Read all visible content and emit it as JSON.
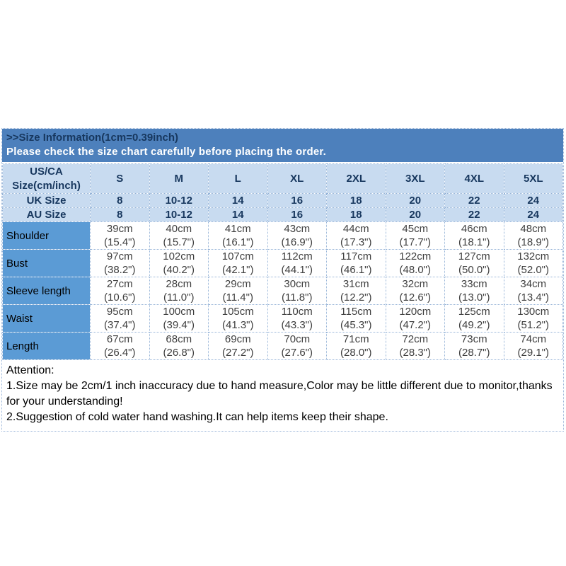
{
  "colors": {
    "band_bg": "#4D80BC",
    "band_title_text": "#17375E",
    "band_subtitle_text": "#FFFFFF",
    "header_row_bg": "#C8DBF0",
    "header_text": "#17375E",
    "label_column_bg": "#5B9BD5",
    "cell_border": "#95B3D7",
    "body_text": "#3F3F3F"
  },
  "header": {
    "title": ">>Size Information(1cm=0.39inch)",
    "subtitle": "Please check the size chart carefully before placing the order."
  },
  "size_table": {
    "corner_label_line1": "US/CA",
    "corner_label_line2": "Size(cm/inch)",
    "size_columns": [
      "S",
      "M",
      "L",
      "XL",
      "2XL",
      "3XL",
      "4XL",
      "5XL"
    ],
    "conversion_rows": [
      {
        "label": "UK Size",
        "values": [
          "8",
          "10-12",
          "14",
          "16",
          "18",
          "20",
          "22",
          "24"
        ]
      },
      {
        "label": "AU Size",
        "values": [
          "8",
          "10-12",
          "14",
          "16",
          "18",
          "20",
          "22",
          "24"
        ]
      }
    ],
    "measurement_rows": [
      {
        "label": "Shoulder",
        "cm": [
          "39cm",
          "40cm",
          "41cm",
          "43cm",
          "44cm",
          "45cm",
          "46cm",
          "48cm"
        ],
        "inch": [
          "(15.4\")",
          "(15.7\")",
          "(16.1\")",
          "(16.9\")",
          "(17.3\")",
          "(17.7\")",
          "(18.1\")",
          "(18.9\")"
        ]
      },
      {
        "label": "Bust",
        "cm": [
          "97cm",
          "102cm",
          "107cm",
          "112cm",
          "117cm",
          "122cm",
          "127cm",
          "132cm"
        ],
        "inch": [
          "(38.2\")",
          "(40.2\")",
          "(42.1\")",
          "(44.1\")",
          "(46.1\")",
          "(48.0\")",
          "(50.0\")",
          "(52.0\")"
        ]
      },
      {
        "label": "Sleeve length",
        "cm": [
          "27cm",
          "28cm",
          "29cm",
          "30cm",
          "31cm",
          "32cm",
          "33cm",
          "34cm"
        ],
        "inch": [
          "(10.6\")",
          "(11.0\")",
          "(11.4\")",
          "(11.8\")",
          "(12.2\")",
          "(12.6\")",
          "(13.0\")",
          "(13.4\")"
        ]
      },
      {
        "label": "Waist",
        "cm": [
          "95cm",
          "100cm",
          "105cm",
          "110cm",
          "115cm",
          "120cm",
          "125cm",
          "130cm"
        ],
        "inch": [
          "(37.4\")",
          "(39.4\")",
          "(41.3\")",
          "(43.3\")",
          "(45.3\")",
          "(47.2\")",
          "(49.2\")",
          "(51.2\")"
        ]
      },
      {
        "label": "Length",
        "cm": [
          "67cm",
          "68cm",
          "69cm",
          "70cm",
          "71cm",
          "72cm",
          "73cm",
          "74cm"
        ],
        "inch": [
          "(26.4\")",
          "(26.8\")",
          "(27.2\")",
          "(27.6\")",
          "(28.0\")",
          "(28.3\")",
          "(28.7\")",
          "(29.1\")"
        ]
      }
    ]
  },
  "attention": {
    "title": "Attention:",
    "notes": [
      "1.Size may be 2cm/1 inch inaccuracy due to hand measure,Color may be little different due to monitor,thanks for your understanding!",
      "2.Suggestion of cold water hand washing.It can help items keep their shape."
    ]
  }
}
